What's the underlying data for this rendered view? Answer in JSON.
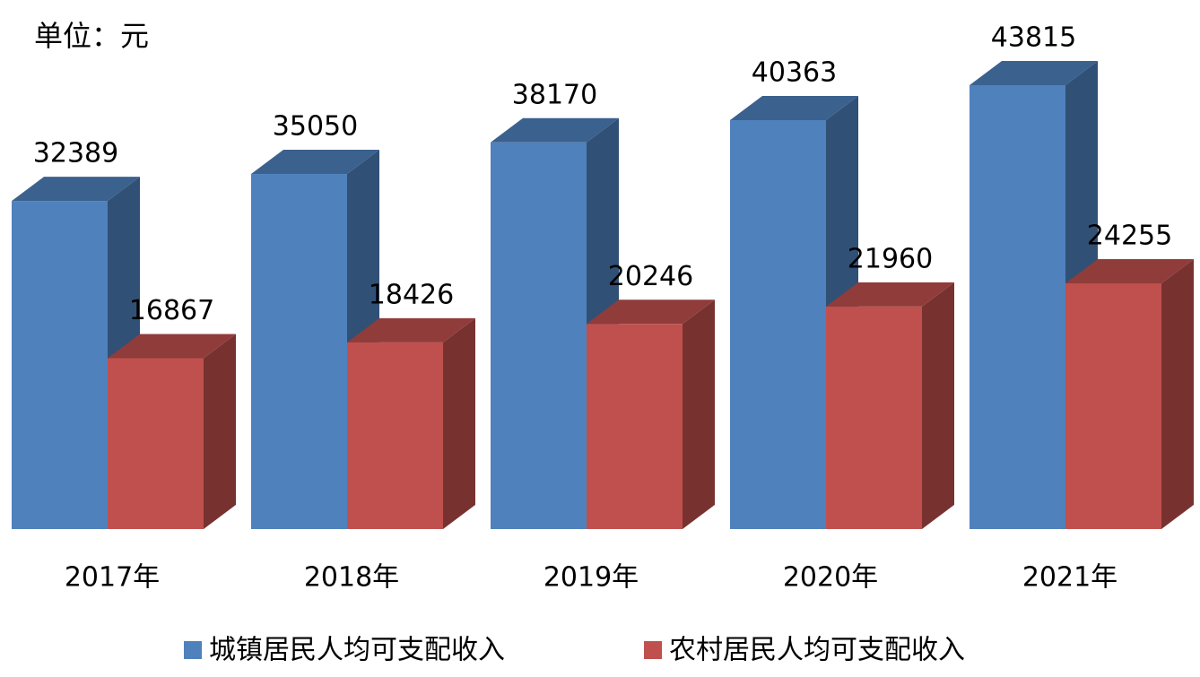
{
  "chart_data": {
    "type": "bar3d",
    "subtitle": "单位：元",
    "categories": [
      "2017年",
      "2018年",
      "2019年",
      "2020年",
      "2021年"
    ],
    "series": [
      {
        "name": "城镇居民人均可支配收入",
        "color": "#4f81bd",
        "values": [
          32389,
          35050,
          38170,
          40363,
          43815
        ]
      },
      {
        "name": "农村居民人均可支配收入",
        "color": "#c0504d",
        "values": [
          16867,
          18426,
          20246,
          21960,
          24255
        ]
      }
    ],
    "legend": "bottom"
  }
}
